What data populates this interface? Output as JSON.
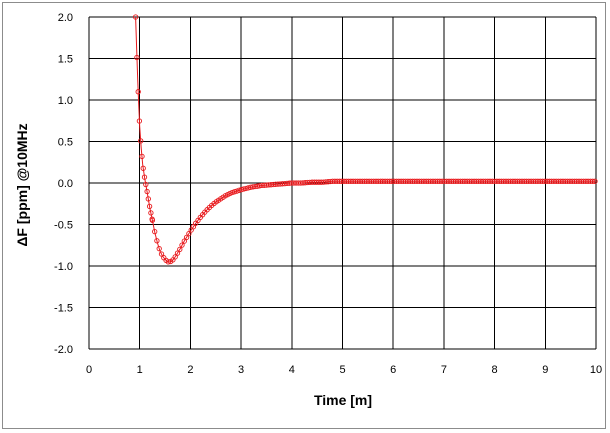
{
  "chart_data": {
    "type": "line",
    "xlabel": "Time [m]",
    "ylabel": "ΔF [ppm] @10MHz",
    "xlim": [
      0,
      10
    ],
    "ylim": [
      -2.0,
      2.0
    ],
    "x_ticks": [
      "0",
      "1",
      "2",
      "3",
      "4",
      "5",
      "6",
      "7",
      "8",
      "9",
      "10"
    ],
    "y_ticks": [
      "2.0",
      "1.5",
      "1.0",
      "0.5",
      "0.0",
      "-0.5",
      "-1.0",
      "-1.5",
      "-2.0"
    ],
    "grid": true,
    "legend": "none",
    "series_color": "#e8191c",
    "series": [
      {
        "markers": "open-circle",
        "x": [
          0.92,
          0.94,
          0.96,
          0.98,
          1.0,
          1.03,
          1.06,
          1.1,
          1.15,
          1.2,
          1.25,
          1.3,
          1.35,
          1.4,
          1.45,
          1.5,
          1.55,
          1.6,
          1.65,
          1.7,
          1.75,
          1.8,
          1.85,
          1.9,
          2.0,
          2.1,
          2.2,
          2.3,
          2.4,
          2.5,
          2.6,
          2.7,
          2.8,
          2.9,
          3.0,
          3.2,
          3.4,
          3.6,
          3.8,
          4.0,
          4.2,
          4.4,
          4.6,
          4.8,
          5.0,
          5.5,
          6.0,
          6.5,
          7.0,
          7.5,
          8.0,
          8.5,
          9.0,
          9.5,
          10.0
        ],
        "y": [
          2.0,
          1.6,
          1.25,
          0.95,
          0.68,
          0.42,
          0.22,
          0.05,
          -0.12,
          -0.3,
          -0.45,
          -0.6,
          -0.72,
          -0.82,
          -0.88,
          -0.92,
          -0.95,
          -0.95,
          -0.93,
          -0.89,
          -0.84,
          -0.79,
          -0.73,
          -0.68,
          -0.58,
          -0.49,
          -0.41,
          -0.34,
          -0.28,
          -0.23,
          -0.19,
          -0.15,
          -0.12,
          -0.1,
          -0.08,
          -0.05,
          -0.03,
          -0.02,
          -0.01,
          0.0,
          0.0,
          0.01,
          0.01,
          0.02,
          0.02,
          0.02,
          0.02,
          0.02,
          0.02,
          0.02,
          0.02,
          0.02,
          0.02,
          0.02,
          0.02
        ]
      }
    ]
  }
}
